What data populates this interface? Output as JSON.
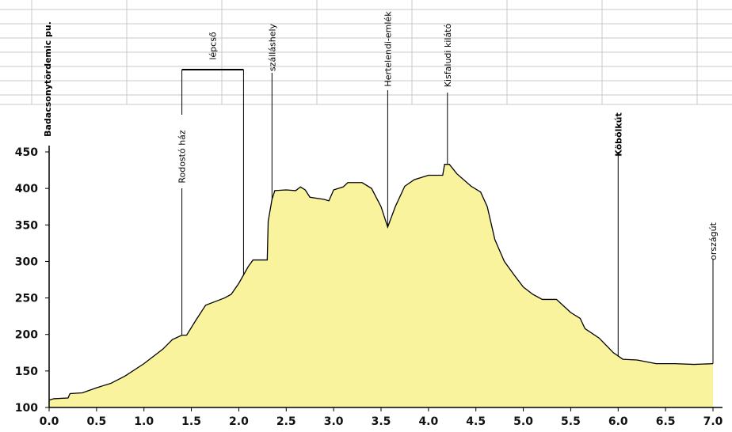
{
  "chart_data": {
    "type": "area",
    "x": [
      0.0,
      0.05,
      0.2,
      0.22,
      0.35,
      0.5,
      0.65,
      0.8,
      1.0,
      1.2,
      1.3,
      1.4,
      1.45,
      1.55,
      1.65,
      1.75,
      1.85,
      1.92,
      2.0,
      2.1,
      2.15,
      2.3,
      2.31,
      2.35,
      2.38,
      2.5,
      2.6,
      2.65,
      2.7,
      2.75,
      2.9,
      2.95,
      3.0,
      3.1,
      3.15,
      3.3,
      3.4,
      3.5,
      3.57,
      3.65,
      3.75,
      3.85,
      4.0,
      4.15,
      4.17,
      4.22,
      4.3,
      4.45,
      4.55,
      4.62,
      4.7,
      4.8,
      4.9,
      5.0,
      5.1,
      5.2,
      5.35,
      5.5,
      5.6,
      5.65,
      5.8,
      5.95,
      6.05,
      6.2,
      6.4,
      6.6,
      6.8,
      7.0
    ],
    "y": [
      110,
      112,
      113,
      119,
      120,
      127,
      133,
      143,
      160,
      180,
      193,
      199,
      199,
      220,
      240,
      245,
      250,
      255,
      270,
      293,
      302,
      302,
      355,
      385,
      397,
      398,
      397,
      402,
      398,
      388,
      385,
      383,
      398,
      402,
      408,
      408,
      400,
      375,
      347,
      375,
      403,
      412,
      418,
      418,
      433,
      433,
      420,
      403,
      395,
      375,
      330,
      300,
      282,
      265,
      255,
      248,
      248,
      230,
      222,
      208,
      195,
      175,
      166,
      165,
      160,
      160,
      159,
      160
    ],
    "color": "#faf39e",
    "xlim": [
      0,
      7
    ],
    "ylim": [
      100,
      450
    ],
    "xticks": [
      {
        "value": 0,
        "label": "0.0"
      },
      {
        "value": 0.5,
        "label": "0.5"
      },
      {
        "value": 1,
        "label": "1.0"
      },
      {
        "value": 1.5,
        "label": "1.5"
      },
      {
        "value": 2,
        "label": "2.0"
      },
      {
        "value": 2.5,
        "label": "2.5"
      },
      {
        "value": 3,
        "label": "3.0"
      },
      {
        "value": 3.5,
        "label": "3.5"
      },
      {
        "value": 4,
        "label": "4.0"
      },
      {
        "value": 4.5,
        "label": "4.5"
      },
      {
        "value": 5,
        "label": "5.0"
      },
      {
        "value": 5.5,
        "label": "5.5"
      },
      {
        "value": 6,
        "label": "6.0"
      },
      {
        "value": 6.5,
        "label": "6.5"
      },
      {
        "value": 7,
        "label": "7.0"
      }
    ],
    "yticks": [
      100,
      150,
      200,
      250,
      300,
      350,
      400,
      450
    ],
    "annotations": [
      {
        "text": "Badacsonytördemic pu.",
        "x": 0
      },
      {
        "text": "Rodostó ház",
        "x": 1.4
      },
      {
        "text": "lépcső",
        "x_start": 1.4,
        "x_end": 2.05
      },
      {
        "text": "szálláshely",
        "x": 2.35
      },
      {
        "text": "Hertelendi-emlék",
        "x": 3.57
      },
      {
        "text": "Kisfaludi kilátó",
        "x": 4.2
      },
      {
        "text": "Köbölkút",
        "x": 6.0
      },
      {
        "text": "országút",
        "x": 7.0
      }
    ]
  }
}
